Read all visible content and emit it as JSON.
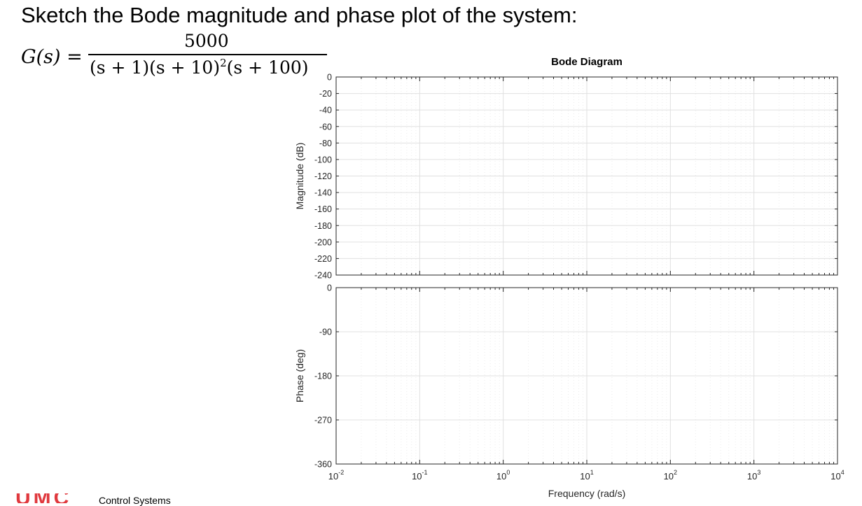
{
  "prompt": "Sketch the Bode magnitude and phase plot of the system:",
  "formula": {
    "lhs": "G(s) =",
    "numerator": "5000",
    "denominator_base": "(s + 1)(s + 10)",
    "denominator_exp": "2",
    "denominator_tail": "(s + 100)"
  },
  "footer": {
    "logo_text": "UMC",
    "course": "Control Systems"
  },
  "chart_data": {
    "type": "line",
    "title": "Bode Diagram",
    "xlabel": "Frequency  (rad/s)",
    "x_scale": "log",
    "xlim": [
      0.01,
      10000
    ],
    "x_ticks": [
      {
        "value": 0.01,
        "base": "10",
        "exp": "-2"
      },
      {
        "value": 0.1,
        "base": "10",
        "exp": "-1"
      },
      {
        "value": 1,
        "base": "10",
        "exp": "0"
      },
      {
        "value": 10,
        "base": "10",
        "exp": "1"
      },
      {
        "value": 100,
        "base": "10",
        "exp": "2"
      },
      {
        "value": 1000,
        "base": "10",
        "exp": "3"
      },
      {
        "value": 10000,
        "base": "10",
        "exp": "4"
      }
    ],
    "grid": true,
    "panels": [
      {
        "name": "magnitude",
        "ylabel": "Magnitude (dB)",
        "ylim": [
          -240,
          0
        ],
        "y_ticks": [
          0,
          -20,
          -40,
          -60,
          -80,
          -100,
          -120,
          -140,
          -160,
          -180,
          -200,
          -220,
          -240
        ],
        "series": []
      },
      {
        "name": "phase",
        "ylabel": "Phase (deg)",
        "ylim": [
          -360,
          0
        ],
        "y_ticks": [
          0,
          -90,
          -180,
          -270,
          -360
        ],
        "series": []
      }
    ],
    "colors": {
      "axis": "#262626",
      "grid": "#e0e0e0",
      "minor_grid": "#ececec"
    }
  }
}
